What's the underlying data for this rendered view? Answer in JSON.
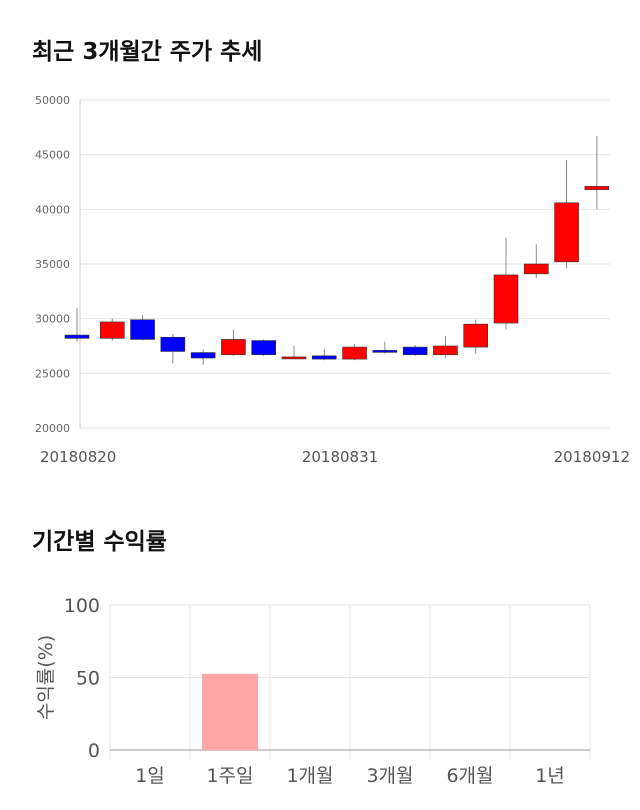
{
  "section1": {
    "title": "최근 3개월간 주가 추세"
  },
  "section2": {
    "title": "기간별 수익률"
  },
  "chart_data": [
    {
      "type": "candlestick",
      "ylim": [
        20000,
        50000
      ],
      "y_ticks": [
        "20000",
        "25000",
        "30000",
        "35000",
        "40000",
        "45000",
        "50000"
      ],
      "x_tick_labels": [
        "20180820",
        "20180831",
        "20180912"
      ],
      "grid": true,
      "up_color": "#ff0000",
      "down_color": "#0000ff",
      "candles": [
        {
          "open": 28500,
          "close": 28200,
          "high": 31000,
          "low": 27900
        },
        {
          "open": 28200,
          "close": 29700,
          "high": 30000,
          "low": 28000
        },
        {
          "open": 29900,
          "close": 28100,
          "high": 30300,
          "low": 28000
        },
        {
          "open": 28300,
          "close": 27000,
          "high": 28600,
          "low": 25900
        },
        {
          "open": 26900,
          "close": 26400,
          "high": 27200,
          "low": 25800
        },
        {
          "open": 26700,
          "close": 28100,
          "high": 29000,
          "low": 26600
        },
        {
          "open": 28000,
          "close": 26700,
          "high": 28100,
          "low": 26600
        },
        {
          "open": 26400,
          "close": 26500,
          "high": 27500,
          "low": 26300
        },
        {
          "open": 26600,
          "close": 26300,
          "high": 27200,
          "low": 26200
        },
        {
          "open": 26300,
          "close": 27400,
          "high": 27700,
          "low": 26200
        },
        {
          "open": 27100,
          "close": 27000,
          "high": 27900,
          "low": 26800
        },
        {
          "open": 27400,
          "close": 26700,
          "high": 27600,
          "low": 26600
        },
        {
          "open": 26700,
          "close": 27500,
          "high": 28400,
          "low": 26400
        },
        {
          "open": 27400,
          "close": 29500,
          "high": 29900,
          "low": 26800
        },
        {
          "open": 29600,
          "close": 34000,
          "high": 37400,
          "low": 29000
        },
        {
          "open": 34100,
          "close": 35000,
          "high": 36800,
          "low": 33700
        },
        {
          "open": 35200,
          "close": 40600,
          "high": 44500,
          "low": 34600
        },
        {
          "open": 41800,
          "close": 42100,
          "high": 46700,
          "low": 40000
        }
      ]
    },
    {
      "type": "bar",
      "categories": [
        "1일",
        "1주일",
        "1개월",
        "3개월",
        "6개월",
        "1년"
      ],
      "values": [
        0,
        52.5,
        0,
        0,
        0,
        0
      ],
      "ylabel": "수익률(%)",
      "ylim": [
        0,
        100
      ],
      "y_ticks": [
        "0",
        "50",
        "100"
      ],
      "bar_color": "#ffa6a6",
      "grid": true
    }
  ]
}
